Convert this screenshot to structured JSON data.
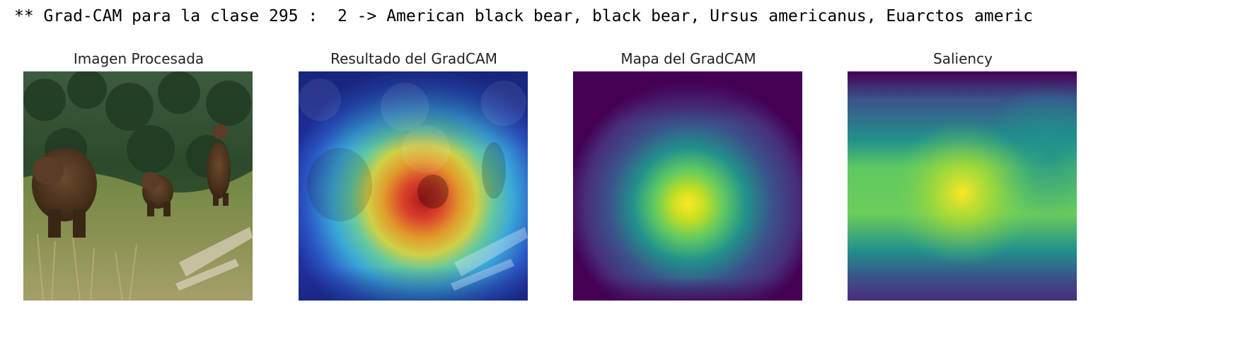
{
  "header": {
    "text": "** Grad-CAM para la clase 295 :  2 -> American black bear, black bear, Ursus americanus, Euarctos americ"
  },
  "panels": [
    {
      "title": "Imagen Procesada"
    },
    {
      "title": "Resultado del GradCAM"
    },
    {
      "title": "Mapa del GradCAM"
    },
    {
      "title": "Saliency"
    }
  ]
}
